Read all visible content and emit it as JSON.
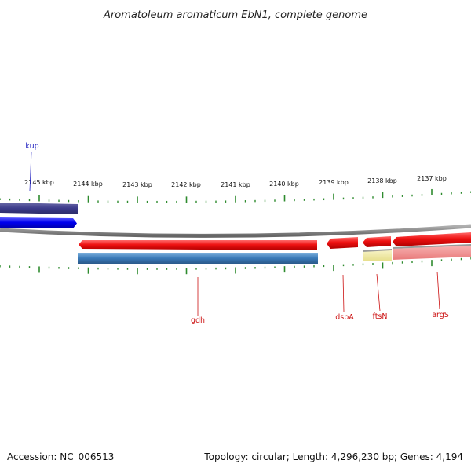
{
  "title": "Aromatoleum aromaticum EbN1, complete genome",
  "footer": {
    "accession": "Accession: NC_006513",
    "topology": "Topology: circular; Length: 4,296,230 bp; Genes: 4,194"
  },
  "colors": {
    "tick": "#2e8b2e",
    "backbone": "#8a8a8a",
    "forward_label": "#2020c0",
    "reverse_label": "#cc1111"
  },
  "ticks": {
    "labels": [
      "2145 kbp",
      "2144 kbp",
      "2143 kbp",
      "2142 kbp",
      "2141 kbp",
      "2140 kbp",
      "2139 kbp",
      "2138 kbp",
      "2137 kbp"
    ]
  },
  "genes": [
    {
      "name": "kup",
      "strand": "forward",
      "color": "#0000ee",
      "feature_color": "#3b3b8a",
      "label_color": "#2020c0"
    },
    {
      "name": "gdh",
      "strand": "reverse",
      "color": "#ee1111",
      "feature_color": "#3a7ab8",
      "label_color": "#cc1111"
    },
    {
      "name": "dsbA",
      "strand": "reverse",
      "color": "#ee1111",
      "label_color": "#cc1111"
    },
    {
      "name": "ftsN",
      "strand": "reverse",
      "color": "#ee1111",
      "feature_color": "#eee8a0",
      "label_color": "#cc1111"
    },
    {
      "name": "argS",
      "strand": "reverse",
      "color": "#ee1111",
      "feature_color": "#f08a8a",
      "label_color": "#cc1111"
    }
  ]
}
